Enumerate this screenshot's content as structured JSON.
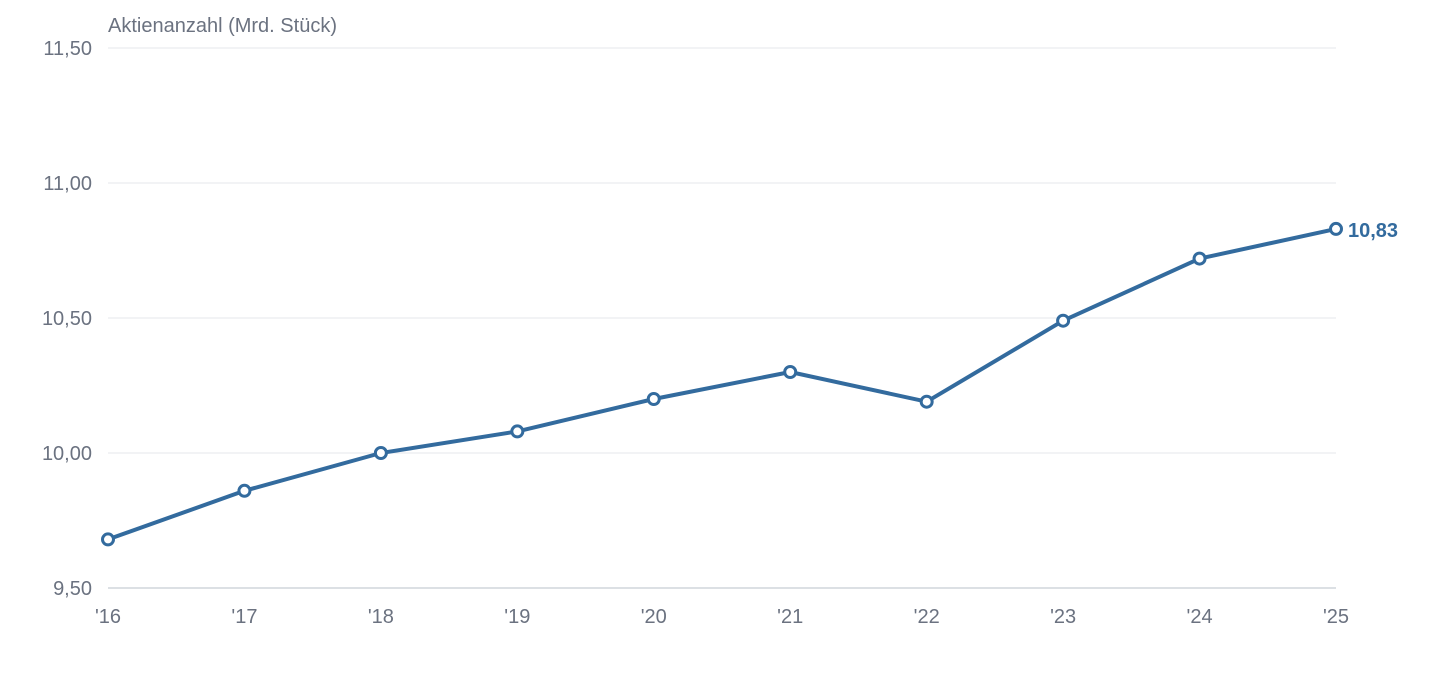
{
  "chart_data": {
    "type": "line",
    "ylabel": "Aktienanzahl (Mrd. Stück)",
    "xlabel": "",
    "categories": [
      "'16",
      "'17",
      "'18",
      "'19",
      "'20",
      "'21",
      "'22",
      "'23",
      "'24",
      "'25"
    ],
    "series": [
      {
        "values": [
          9.68,
          9.86,
          10.0,
          10.08,
          10.2,
          10.3,
          10.19,
          10.49,
          10.72,
          10.83
        ],
        "color": "#336b9e"
      }
    ],
    "ylim": [
      9.5,
      11.5
    ],
    "yticks": [
      9.5,
      10.0,
      10.5,
      11.0,
      11.5
    ],
    "ytick_labels": [
      "9,50",
      "10,00",
      "10,50",
      "11,00",
      "11,50"
    ],
    "end_label": "10,83",
    "grid": true,
    "legend": "none"
  }
}
